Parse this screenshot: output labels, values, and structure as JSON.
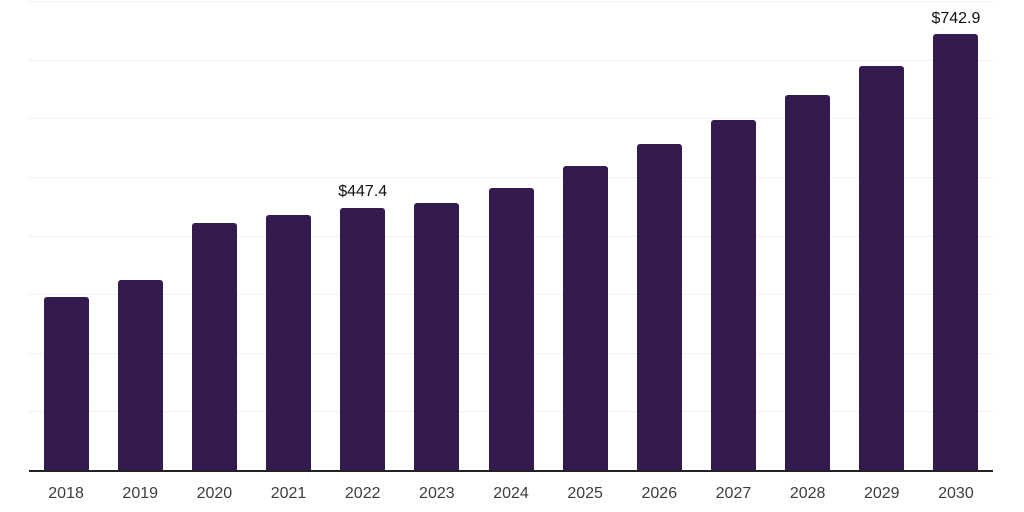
{
  "chart_data": {
    "type": "bar",
    "title": "",
    "xlabel": "",
    "ylabel": "",
    "categories": [
      "2018",
      "2019",
      "2020",
      "2021",
      "2022",
      "2023",
      "2024",
      "2025",
      "2026",
      "2027",
      "2028",
      "2029",
      "2030"
    ],
    "values": [
      295.6,
      324.6,
      420.9,
      435.3,
      447.4,
      455.4,
      480.4,
      518.0,
      556.4,
      597.2,
      640.4,
      689.2,
      742.9
    ],
    "annotations": [
      {
        "category": "2022",
        "index": 4,
        "label": "$447.4"
      },
      {
        "category": "2030",
        "index": 12,
        "label": "$742.9"
      }
    ],
    "ylim": [
      0,
      800
    ],
    "grid_step": 100,
    "grid": true,
    "legend": false,
    "bar_color": "#331a4f",
    "grid_color": "#f0f0f0",
    "axis_line_color": "#222222",
    "tick_label_color": "#3d3d3d",
    "value_label_color": "#111111"
  }
}
